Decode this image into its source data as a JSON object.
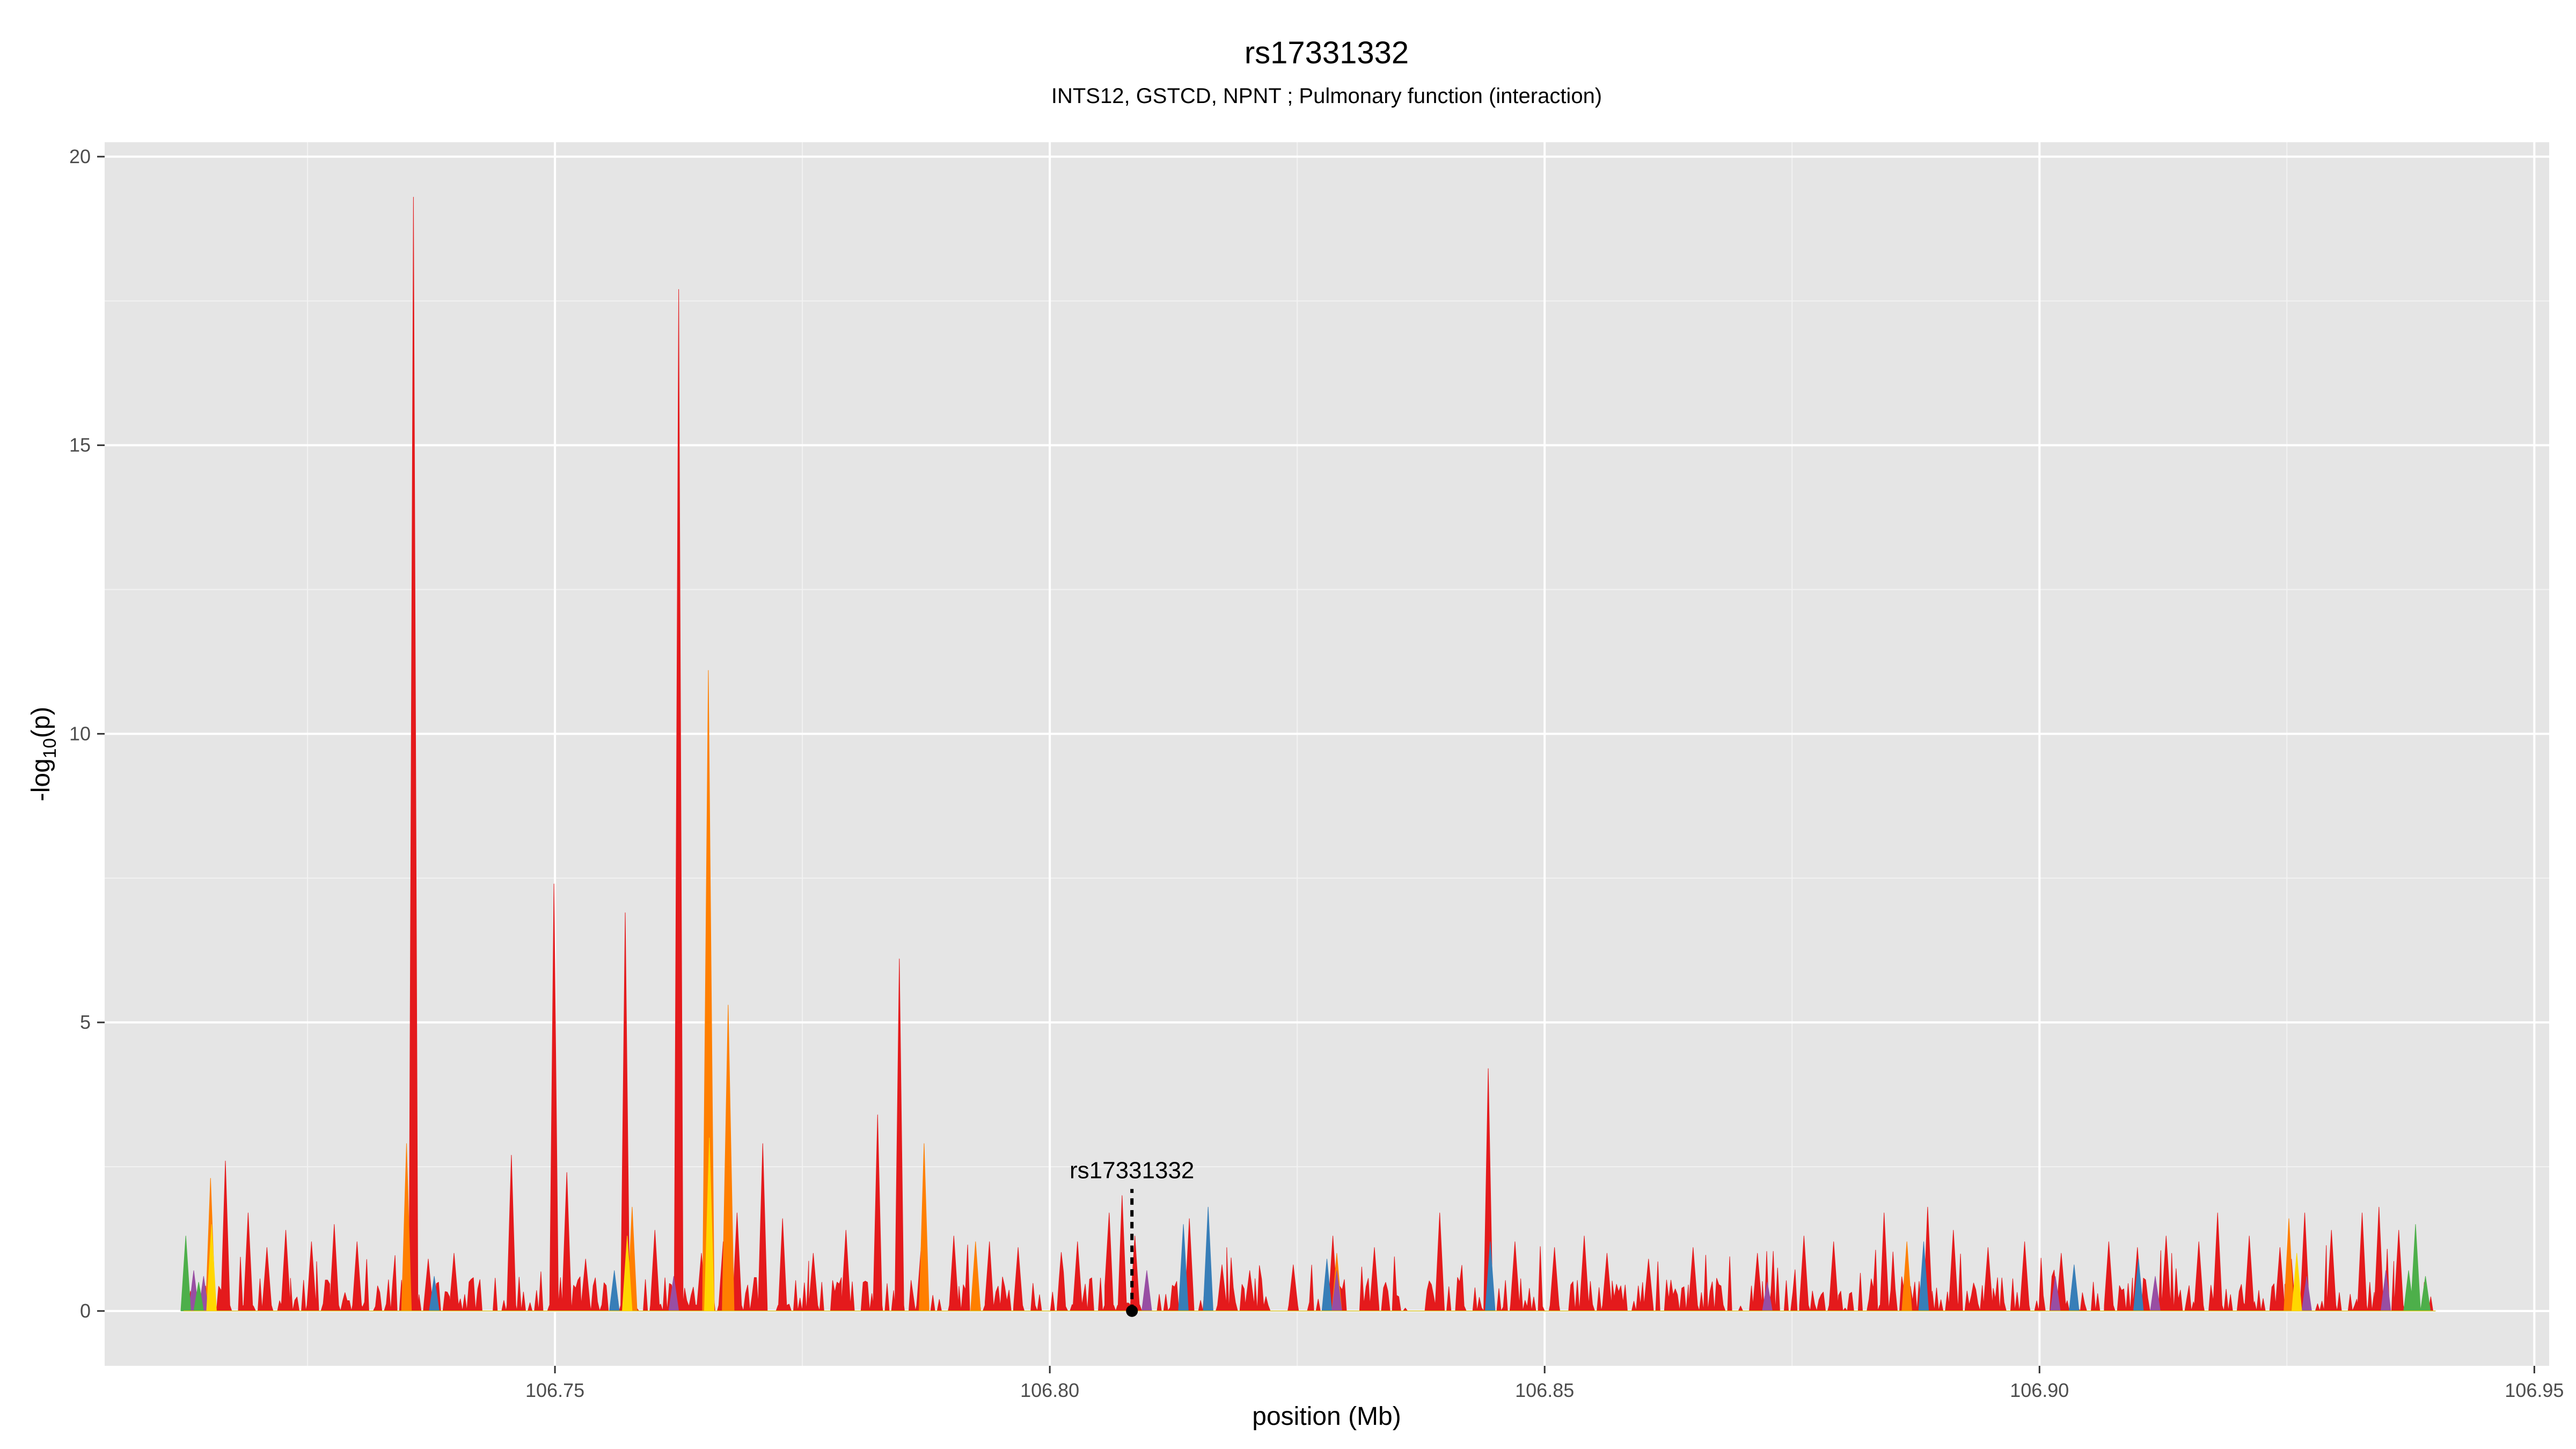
{
  "chart_data": {
    "type": "area",
    "title": "rs17331332",
    "subtitle": "INTS12,  GSTCD,  NPNT ; Pulmonary function (interaction)",
    "xlabel": "position (Mb)",
    "ylabel_main": "-log",
    "ylabel_sub": "10",
    "ylabel_tail": "(p)",
    "xlim": [
      106.7045,
      106.9515
    ],
    "ylim": [
      -0.95,
      20.25
    ],
    "x_ticks": [
      106.75,
      106.8,
      106.85,
      106.9,
      106.95
    ],
    "x_tick_labels": [
      "106.75",
      "106.80",
      "106.85",
      "106.90",
      "106.95"
    ],
    "y_ticks": [
      0,
      5,
      10,
      15,
      20
    ],
    "y_tick_labels": [
      "0",
      "5",
      "10",
      "15",
      "20"
    ],
    "grid": true,
    "colors": {
      "panel_bg": "#e5e5e5",
      "grid_major": "#ffffff",
      "grid_minor": "#f2f2f2",
      "red": "#e41a1c",
      "orange": "#ff7f00",
      "blue": "#377eb8",
      "purple": "#984ea3",
      "green": "#4daf4a",
      "yellow": "#ffd700",
      "marker": "#000000"
    },
    "highlight": {
      "label": "rs17331332",
      "x": 106.8083,
      "y": 0,
      "label_y": 2.3
    },
    "series": [
      {
        "color_key": "red",
        "peaks": [
          [
            106.7167,
            2.6
          ],
          [
            106.719,
            1.7
          ],
          [
            106.7209,
            1.1
          ],
          [
            106.7228,
            1.4
          ],
          [
            106.7254,
            1.2
          ],
          [
            106.7277,
            1.5
          ],
          [
            106.73,
            1.2
          ],
          [
            106.7357,
            19.3
          ],
          [
            106.7372,
            0.9
          ],
          [
            106.7398,
            1.0
          ],
          [
            106.7456,
            2.7
          ],
          [
            106.7499,
            7.4
          ],
          [
            106.7512,
            2.4
          ],
          [
            106.7531,
            0.9
          ],
          [
            106.7571,
            6.9
          ],
          [
            106.7601,
            1.4
          ],
          [
            106.7625,
            17.7
          ],
          [
            106.7648,
            1.0
          ],
          [
            106.767,
            1.2
          ],
          [
            106.7684,
            1.7
          ],
          [
            106.771,
            2.9
          ],
          [
            106.773,
            1.6
          ],
          [
            106.7761,
            1.0
          ],
          [
            106.7794,
            1.4
          ],
          [
            106.7826,
            3.4
          ],
          [
            106.7848,
            6.1
          ],
          [
            106.787,
            1.1
          ],
          [
            106.7903,
            1.3
          ],
          [
            106.7939,
            1.2
          ],
          [
            106.7968,
            1.1
          ],
          [
            106.8028,
            1.2
          ],
          [
            106.806,
            1.7
          ],
          [
            106.8073,
            2.0
          ],
          [
            106.8086,
            1.3
          ],
          [
            106.8141,
            1.6
          ],
          [
            106.8174,
            0.8
          ],
          [
            106.8202,
            0.7
          ],
          [
            106.8246,
            0.8
          ],
          [
            106.8286,
            1.3
          ],
          [
            106.8328,
            1.1
          ],
          [
            106.8394,
            1.7
          ],
          [
            106.8443,
            4.2
          ],
          [
            106.847,
            1.2
          ],
          [
            106.851,
            1.1
          ],
          [
            106.854,
            1.3
          ],
          [
            106.8563,
            1.0
          ],
          [
            106.8605,
            0.9
          ],
          [
            106.865,
            1.1
          ],
          [
            106.8715,
            1.0
          ],
          [
            106.8762,
            1.3
          ],
          [
            106.8792,
            1.2
          ],
          [
            106.8843,
            1.7
          ],
          [
            106.8887,
            1.8
          ],
          [
            106.8913,
            1.4
          ],
          [
            106.8948,
            1.1
          ],
          [
            106.8985,
            1.2
          ],
          [
            106.9022,
            1.0
          ],
          [
            106.907,
            1.2
          ],
          [
            106.9099,
            1.1
          ],
          [
            106.9128,
            1.3
          ],
          [
            106.9161,
            1.2
          ],
          [
            106.918,
            1.7
          ],
          [
            106.9212,
            1.3
          ],
          [
            106.9243,
            1.1
          ],
          [
            106.9268,
            1.7
          ],
          [
            106.9295,
            1.4
          ],
          [
            106.9326,
            1.7
          ],
          [
            106.9343,
            1.8
          ],
          [
            106.9363,
            1.4
          ]
        ]
      },
      {
        "color_key": "orange",
        "peaks": [
          [
            106.7152,
            2.3
          ],
          [
            106.735,
            2.9
          ],
          [
            106.7578,
            1.8
          ],
          [
            106.7655,
            11.1
          ],
          [
            106.7675,
            5.3
          ],
          [
            106.7873,
            2.9
          ],
          [
            106.7925,
            1.2
          ],
          [
            106.829,
            1.0
          ],
          [
            106.8866,
            1.2
          ],
          [
            106.9252,
            1.6
          ]
        ]
      },
      {
        "color_key": "blue",
        "peaks": [
          [
            106.7378,
            0.6
          ],
          [
            106.756,
            0.7
          ],
          [
            106.8135,
            1.5
          ],
          [
            106.816,
            1.8
          ],
          [
            106.828,
            0.9
          ],
          [
            106.8445,
            1.2
          ],
          [
            106.8883,
            1.2
          ],
          [
            106.9035,
            0.8
          ],
          [
            106.91,
            0.9
          ]
        ]
      },
      {
        "color_key": "purple",
        "peaks": [
          [
            106.7135,
            0.7
          ],
          [
            106.7145,
            0.6
          ],
          [
            106.762,
            0.6
          ],
          [
            106.8098,
            0.7
          ],
          [
            106.829,
            0.7
          ],
          [
            106.8725,
            0.5
          ],
          [
            106.9016,
            0.6
          ],
          [
            106.9117,
            0.6
          ],
          [
            106.927,
            0.6
          ],
          [
            106.935,
            0.7
          ]
        ]
      },
      {
        "color_key": "green",
        "peaks": [
          [
            106.7127,
            1.3
          ],
          [
            106.714,
            0.5
          ],
          [
            106.9373,
            0.7
          ],
          [
            106.938,
            1.5
          ],
          [
            106.939,
            0.6
          ]
        ]
      },
      {
        "color_key": "yellow",
        "peaks": [
          [
            106.7153,
            1.5
          ],
          [
            106.7573,
            1.3
          ],
          [
            106.7656,
            3.0
          ],
          [
            106.926,
            1.0
          ]
        ]
      }
    ]
  }
}
